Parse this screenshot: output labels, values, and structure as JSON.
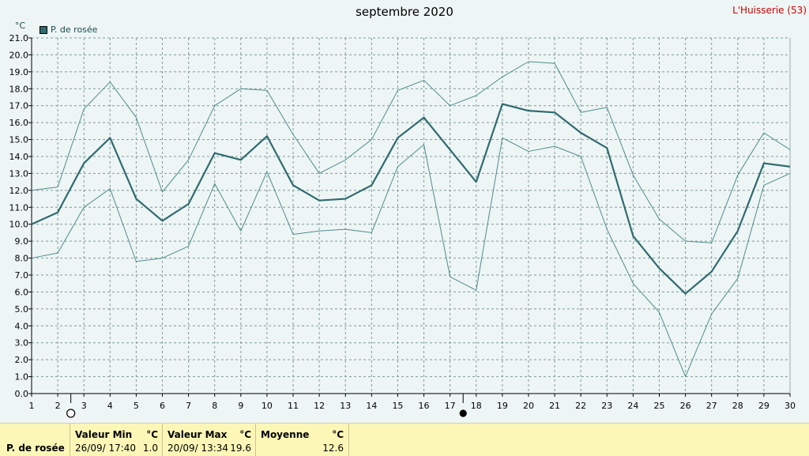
{
  "header": {
    "title": "septembre 2020",
    "station": "L'Huisserie (53)",
    "unit": "°C"
  },
  "legend": {
    "label": "P. de rosée",
    "color": "#2f6b6f"
  },
  "chart_data": {
    "type": "line",
    "title": "septembre 2020",
    "ylabel": "°C",
    "xlabel": "",
    "x": [
      1,
      2,
      3,
      4,
      5,
      6,
      7,
      8,
      9,
      10,
      11,
      12,
      13,
      14,
      15,
      16,
      17,
      18,
      19,
      20,
      21,
      22,
      23,
      24,
      25,
      26,
      27,
      28,
      29,
      30
    ],
    "ylim": [
      0,
      21
    ],
    "yticks": [
      "0.0",
      "1.0",
      "2.0",
      "3.0",
      "4.0",
      "5.0",
      "6.0",
      "7.0",
      "8.0",
      "9.0",
      "10.0",
      "11.0",
      "12.0",
      "13.0",
      "14.0",
      "15.0",
      "16.0",
      "17.0",
      "18.0",
      "19.0",
      "20.0",
      "21.0"
    ],
    "xticks": [
      "1",
      "2",
      "3",
      "4",
      "5",
      "6",
      "7",
      "8",
      "9",
      "10",
      "11",
      "12",
      "13",
      "14",
      "15",
      "16",
      "17",
      "18",
      "19",
      "20",
      "21",
      "22",
      "23",
      "24",
      "25",
      "26",
      "27",
      "28",
      "29",
      "30"
    ],
    "grid": true,
    "legend_position": "top-left",
    "series": [
      {
        "name": "P. de rosée",
        "role": "mean",
        "color": "#2f6b6f",
        "values": [
          10.0,
          10.7,
          13.6,
          15.1,
          11.5,
          10.2,
          11.2,
          14.2,
          13.8,
          15.2,
          12.3,
          11.4,
          11.5,
          12.3,
          15.1,
          16.3,
          14.4,
          12.5,
          17.1,
          16.7,
          16.6,
          15.4,
          14.5,
          9.3,
          7.4,
          5.9,
          7.2,
          9.6,
          13.6,
          13.4
        ]
      },
      {
        "role": "max",
        "color": "#4e8d8d",
        "values": [
          12.0,
          12.2,
          16.8,
          18.4,
          16.3,
          11.9,
          13.8,
          17.0,
          18.0,
          17.9,
          15.3,
          13.0,
          13.8,
          15.0,
          17.9,
          18.5,
          17.0,
          17.6,
          18.7,
          19.6,
          19.5,
          16.6,
          16.9,
          12.9,
          10.3,
          9.0,
          8.9,
          12.9,
          15.4,
          14.4
        ]
      },
      {
        "role": "min",
        "color": "#4e8d8d",
        "values": [
          8.0,
          8.3,
          11.0,
          12.1,
          7.8,
          8.0,
          8.7,
          12.4,
          9.6,
          13.1,
          9.4,
          9.6,
          9.7,
          9.5,
          13.4,
          14.7,
          6.9,
          6.1,
          15.1,
          14.3,
          14.6,
          14.0,
          9.7,
          6.5,
          4.8,
          1.0,
          4.7,
          6.8,
          12.3,
          13.0
        ]
      }
    ],
    "moon_phases": [
      {
        "day": 2,
        "phase": "full"
      },
      {
        "day": 17,
        "phase": "new"
      }
    ]
  },
  "stats": {
    "param": "P. de rosée",
    "min_header": "Valeur Min",
    "max_header": "Valeur Max",
    "avg_header": "Moyenne",
    "unit": "°C",
    "min_date": "26/09/  17:40",
    "min_value": "1.0",
    "max_date": "20/09/  13:34",
    "max_value": "19.6",
    "avg_value": "12.6"
  }
}
